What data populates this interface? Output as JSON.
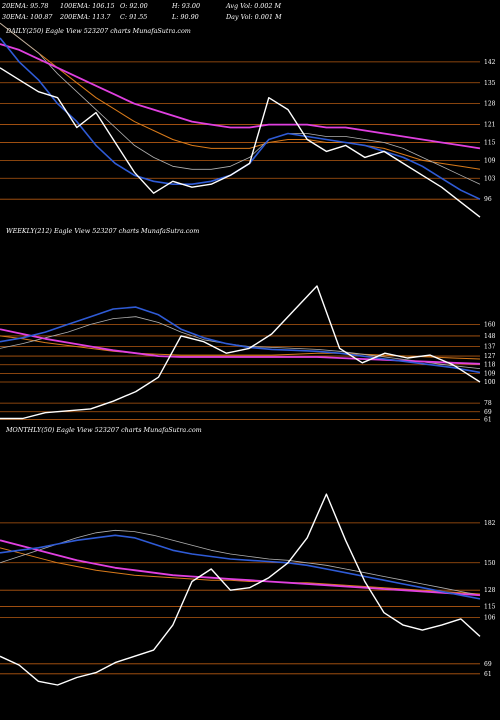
{
  "header": {
    "ema20": "20EMA: 95.78",
    "ema100": "100EMA: 106.15",
    "open": "O: 92.00",
    "high": "H: 93.00",
    "avg_vol": "Avg Vol: 0.002  M",
    "ema30": "30EMA: 100.87",
    "ema200": "200EMA: 113.7",
    "close": "C: 91.55",
    "low": "L: 90.90",
    "day_vol": "Day Vol: 0.001 M"
  },
  "colors": {
    "background": "#000000",
    "price": "#ffffff",
    "ema_blue": "#2f5bd6",
    "ema_magenta": "#e040e0",
    "ema_orange": "#d87a1a",
    "ema_grey": "#b0b0b0",
    "level": "#b55a12"
  },
  "chart_data": [
    {
      "type": "line",
      "title": "DAILY(250) Eagle  View  523207 charts MunafaSutra.com",
      "ylim": [
        85,
        150
      ],
      "tick_labels": [
        "142",
        "135",
        "128",
        "121",
        "115",
        "109",
        "103",
        "96"
      ],
      "levels": [
        142,
        135,
        128,
        121,
        115,
        109,
        103,
        96
      ],
      "x": [
        0,
        10,
        20,
        30,
        40,
        50,
        60,
        70,
        80,
        90,
        100,
        110,
        120,
        130,
        140,
        150,
        160,
        170,
        180,
        190,
        200,
        210,
        220,
        230,
        240,
        250
      ],
      "series": [
        {
          "key": "price",
          "values": [
            140,
            136,
            132,
            130,
            120,
            125,
            115,
            105,
            98,
            102,
            100,
            101,
            104,
            108,
            130,
            126,
            116,
            112,
            114,
            110,
            112,
            108,
            104,
            100,
            95,
            90
          ]
        },
        {
          "key": "ema_blue",
          "values": [
            150,
            142,
            136,
            128,
            122,
            114,
            108,
            104,
            102,
            101,
            101,
            102,
            104,
            108,
            116,
            118,
            117,
            116,
            115,
            114,
            112,
            110,
            107,
            103,
            99,
            96
          ]
        },
        {
          "key": "ema_grey",
          "values": [
            155,
            150,
            145,
            138,
            132,
            126,
            120,
            114,
            110,
            107,
            106,
            106,
            107,
            110,
            116,
            118,
            118,
            117,
            117,
            116,
            115,
            113,
            110,
            107,
            104,
            101
          ]
        },
        {
          "key": "ema_magenta",
          "values": [
            148,
            146,
            143,
            140,
            137,
            134,
            131,
            128,
            126,
            124,
            122,
            121,
            120,
            120,
            121,
            121,
            121,
            120,
            120,
            119,
            118,
            117,
            116,
            115,
            114,
            113
          ]
        },
        {
          "key": "ema_orange",
          "values": [
            155,
            150,
            145,
            140,
            135,
            130,
            126,
            122,
            119,
            116,
            114,
            113,
            113,
            113,
            115,
            116,
            116,
            115,
            115,
            114,
            113,
            111,
            109,
            108,
            107,
            106
          ]
        }
      ]
    },
    {
      "type": "line",
      "title": "WEEKLY(212) Eagle  View  523207 charts MunafaSutra.com",
      "ylim": [
        50,
        250
      ],
      "tick_labels": [
        "160",
        "148",
        "137",
        "127",
        "118",
        "109",
        "100",
        "78",
        "69",
        "61"
      ],
      "levels": [
        160,
        148,
        137,
        127,
        118,
        109,
        100,
        78,
        69,
        61
      ],
      "x": [
        0,
        10,
        20,
        30,
        40,
        50,
        60,
        70,
        80,
        90,
        100,
        110,
        120,
        130,
        140,
        150,
        160,
        170,
        180,
        190,
        200,
        212
      ],
      "series": [
        {
          "key": "price",
          "values": [
            62,
            62,
            68,
            70,
            72,
            80,
            90,
            105,
            148,
            142,
            130,
            135,
            150,
            175,
            200,
            135,
            120,
            130,
            125,
            128,
            118,
            100
          ]
        },
        {
          "key": "ema_blue",
          "values": [
            142,
            146,
            152,
            160,
            168,
            176,
            178,
            170,
            155,
            146,
            140,
            136,
            134,
            133,
            132,
            130,
            127,
            124,
            121,
            118,
            115,
            110
          ]
        },
        {
          "key": "ema_grey",
          "values": [
            135,
            140,
            146,
            152,
            160,
            166,
            168,
            162,
            152,
            144,
            140,
            137,
            136,
            135,
            134,
            132,
            129,
            126,
            123,
            120,
            117,
            114
          ]
        },
        {
          "key": "ema_magenta",
          "values": [
            155,
            150,
            145,
            141,
            137,
            133,
            130,
            127,
            126,
            126,
            126,
            126,
            126,
            126,
            126,
            125,
            124,
            123,
            122,
            121,
            120,
            119
          ]
        },
        {
          "key": "ema_orange",
          "values": [
            148,
            145,
            141,
            138,
            135,
            132,
            130,
            129,
            128,
            128,
            128,
            128,
            128,
            129,
            130,
            130,
            129,
            128,
            127,
            126,
            125,
            124
          ]
        }
      ]
    },
    {
      "type": "line",
      "title": "MONTHLY(50) Eagle  View  523207 charts MunafaSutra.com",
      "ylim": [
        40,
        250
      ],
      "tick_labels": [
        "182",
        "150",
        "128",
        "115",
        "106",
        "69",
        "61"
      ],
      "levels": [
        182,
        150,
        128,
        115,
        106,
        69,
        61
      ],
      "x": [
        0,
        2,
        4,
        6,
        8,
        10,
        12,
        14,
        16,
        18,
        20,
        22,
        24,
        26,
        28,
        30,
        32,
        34,
        36,
        38,
        40,
        42,
        44,
        46,
        48,
        50
      ],
      "series": [
        {
          "key": "price",
          "values": [
            75,
            68,
            55,
            52,
            58,
            62,
            70,
            75,
            80,
            100,
            135,
            145,
            128,
            130,
            138,
            150,
            170,
            205,
            168,
            135,
            110,
            100,
            96,
            100,
            105,
            91
          ]
        },
        {
          "key": "ema_blue",
          "values": [
            158,
            160,
            162,
            165,
            168,
            170,
            172,
            170,
            165,
            160,
            157,
            155,
            153,
            152,
            151,
            150,
            148,
            145,
            142,
            139,
            136,
            133,
            130,
            127,
            124,
            121
          ]
        },
        {
          "key": "ema_grey",
          "values": [
            150,
            155,
            160,
            165,
            170,
            174,
            176,
            175,
            172,
            168,
            164,
            160,
            157,
            155,
            153,
            152,
            150,
            148,
            145,
            142,
            139,
            136,
            133,
            130,
            127,
            124
          ]
        },
        {
          "key": "ema_magenta",
          "values": [
            168,
            164,
            160,
            156,
            152,
            149,
            146,
            144,
            142,
            140,
            139,
            138,
            137,
            136,
            135,
            134,
            133,
            132,
            131,
            130,
            129,
            128,
            127,
            126,
            125,
            124
          ]
        },
        {
          "key": "ema_orange",
          "values": [
            162,
            158,
            154,
            150,
            147,
            144,
            142,
            140,
            139,
            138,
            137,
            136,
            136,
            135,
            135,
            134,
            134,
            133,
            132,
            131,
            130,
            129,
            128,
            127,
            126,
            125
          ]
        }
      ]
    }
  ]
}
